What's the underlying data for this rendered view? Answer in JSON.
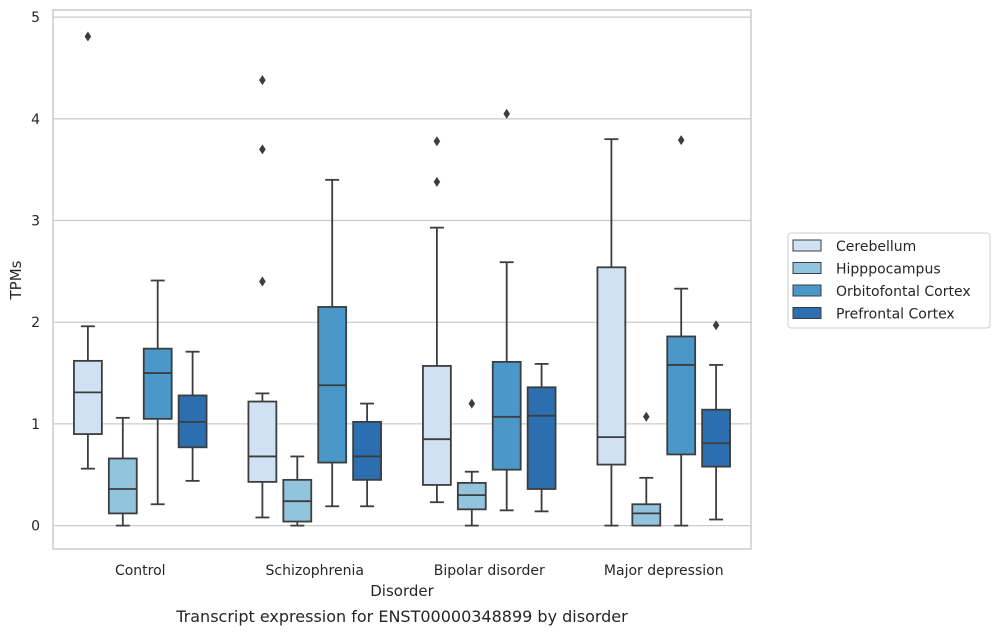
{
  "chart_data": {
    "type": "box",
    "caption": "Transcript expression for ENST00000348899 by disorder",
    "xlabel": "Disorder",
    "ylabel": "TPMs",
    "ylim": [
      -0.23,
      5.07
    ],
    "yticks": [
      0,
      1,
      2,
      3,
      4,
      5
    ],
    "grid": "horizontal",
    "legend_position": "right",
    "categories": [
      "Control",
      "Schizophrenia",
      "Bipolar disorder",
      "Major depression"
    ],
    "series": [
      {
        "name": "Cerebellum",
        "color": "#cfe1f2",
        "boxes": [
          {
            "whisker_low": 0.56,
            "q1": 0.9,
            "median": 1.31,
            "q3": 1.62,
            "whisker_high": 1.96,
            "outliers": [
              4.81
            ]
          },
          {
            "whisker_low": 0.08,
            "q1": 0.43,
            "median": 0.68,
            "q3": 1.22,
            "whisker_high": 1.3,
            "outliers": [
              2.4,
              3.7,
              4.38
            ]
          },
          {
            "whisker_low": 0.23,
            "q1": 0.4,
            "median": 0.85,
            "q3": 1.57,
            "whisker_high": 2.93,
            "outliers": [
              3.38,
              3.78
            ]
          },
          {
            "whisker_low": 0.0,
            "q1": 0.6,
            "median": 0.87,
            "q3": 2.54,
            "whisker_high": 3.8,
            "outliers": []
          }
        ]
      },
      {
        "name": "Hipppocampus",
        "color": "#93c4de",
        "boxes": [
          {
            "whisker_low": 0.0,
            "q1": 0.12,
            "median": 0.36,
            "q3": 0.66,
            "whisker_high": 1.06,
            "outliers": []
          },
          {
            "whisker_low": 0.0,
            "q1": 0.04,
            "median": 0.24,
            "q3": 0.45,
            "whisker_high": 0.68,
            "outliers": []
          },
          {
            "whisker_low": 0.0,
            "q1": 0.16,
            "median": 0.3,
            "q3": 0.42,
            "whisker_high": 0.53,
            "outliers": [
              1.2
            ]
          },
          {
            "whisker_low": 0.0,
            "q1": 0.0,
            "median": 0.12,
            "q3": 0.21,
            "whisker_high": 0.47,
            "outliers": [
              1.07
            ]
          }
        ]
      },
      {
        "name": "Orbitofontal Cortex",
        "color": "#4a98c9",
        "boxes": [
          {
            "whisker_low": 0.21,
            "q1": 1.05,
            "median": 1.5,
            "q3": 1.74,
            "whisker_high": 2.41,
            "outliers": []
          },
          {
            "whisker_low": 0.19,
            "q1": 0.62,
            "median": 1.38,
            "q3": 2.15,
            "whisker_high": 3.4,
            "outliers": []
          },
          {
            "whisker_low": 0.15,
            "q1": 0.55,
            "median": 1.07,
            "q3": 1.61,
            "whisker_high": 2.59,
            "outliers": [
              4.05
            ]
          },
          {
            "whisker_low": 0.0,
            "q1": 0.7,
            "median": 1.58,
            "q3": 1.86,
            "whisker_high": 2.33,
            "outliers": [
              3.79
            ]
          }
        ]
      },
      {
        "name": "Prefrontal Cortex",
        "color": "#2c6fb0",
        "boxes": [
          {
            "whisker_low": 0.44,
            "q1": 0.77,
            "median": 1.02,
            "q3": 1.28,
            "whisker_high": 1.71,
            "outliers": []
          },
          {
            "whisker_low": 0.19,
            "q1": 0.45,
            "median": 0.68,
            "q3": 1.02,
            "whisker_high": 1.2,
            "outliers": []
          },
          {
            "whisker_low": 0.14,
            "q1": 0.36,
            "median": 1.08,
            "q3": 1.36,
            "whisker_high": 1.59,
            "outliers": []
          },
          {
            "whisker_low": 0.06,
            "q1": 0.58,
            "median": 0.81,
            "q3": 1.14,
            "whisker_high": 1.58,
            "outliers": [
              1.97
            ]
          }
        ]
      }
    ]
  }
}
